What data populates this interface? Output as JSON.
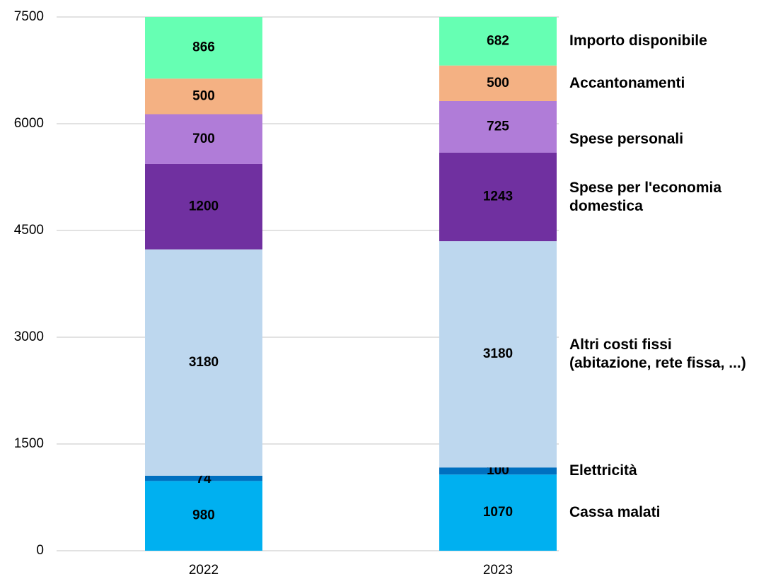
{
  "chart_data": {
    "type": "stacked_bar",
    "categories": [
      "2022",
      "2023"
    ],
    "series": [
      {
        "name": "Cassa malati",
        "color": "#00b0f0",
        "values": [
          980,
          1070
        ]
      },
      {
        "name": "Elettricità",
        "color": "#0070c0",
        "values": [
          74,
          100
        ]
      },
      {
        "name": "Altri costi fissi\n(abitazione, rete fissa, ...)",
        "color": "#bdd7ee",
        "values": [
          3180,
          3180
        ]
      },
      {
        "name": "Spese per l'economia\ndomestica",
        "color": "#7030a0",
        "values": [
          1200,
          1243
        ]
      },
      {
        "name": "Spese personali",
        "color": "#b07cd8",
        "values": [
          700,
          725
        ]
      },
      {
        "name": "Accantonamenti",
        "color": "#f4b183",
        "values": [
          500,
          500
        ]
      },
      {
        "name": "Importo disponibile",
        "color": "#66ffb3",
        "values": [
          866,
          682
        ]
      }
    ],
    "ylim": [
      0,
      7500
    ],
    "yticks": [
      0,
      1500,
      3000,
      4500,
      6000,
      7500
    ],
    "grid": true,
    "legend": "right"
  }
}
